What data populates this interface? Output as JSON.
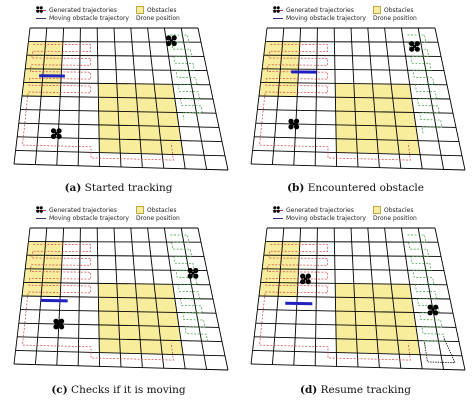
{
  "legend": {
    "generated": "Generated trajectories",
    "moving": "Moving obstacle trajectory",
    "obstacles": "Obstacles",
    "drone": "Drone position"
  },
  "panels": [
    {
      "tag": "(a)",
      "title": "Started tracking"
    },
    {
      "tag": "(b)",
      "title": "Encountered obstacle"
    },
    {
      "tag": "(c)",
      "title": "Checks if it is moving"
    },
    {
      "tag": "(d)",
      "title": "Resume tracking"
    }
  ],
  "colors": {
    "obstacle": "#f7ed9c",
    "grid": "#000000",
    "generated": "#d04040",
    "moving_obstacle": "#2020c0",
    "tracking": "#3a9a3a"
  }
}
